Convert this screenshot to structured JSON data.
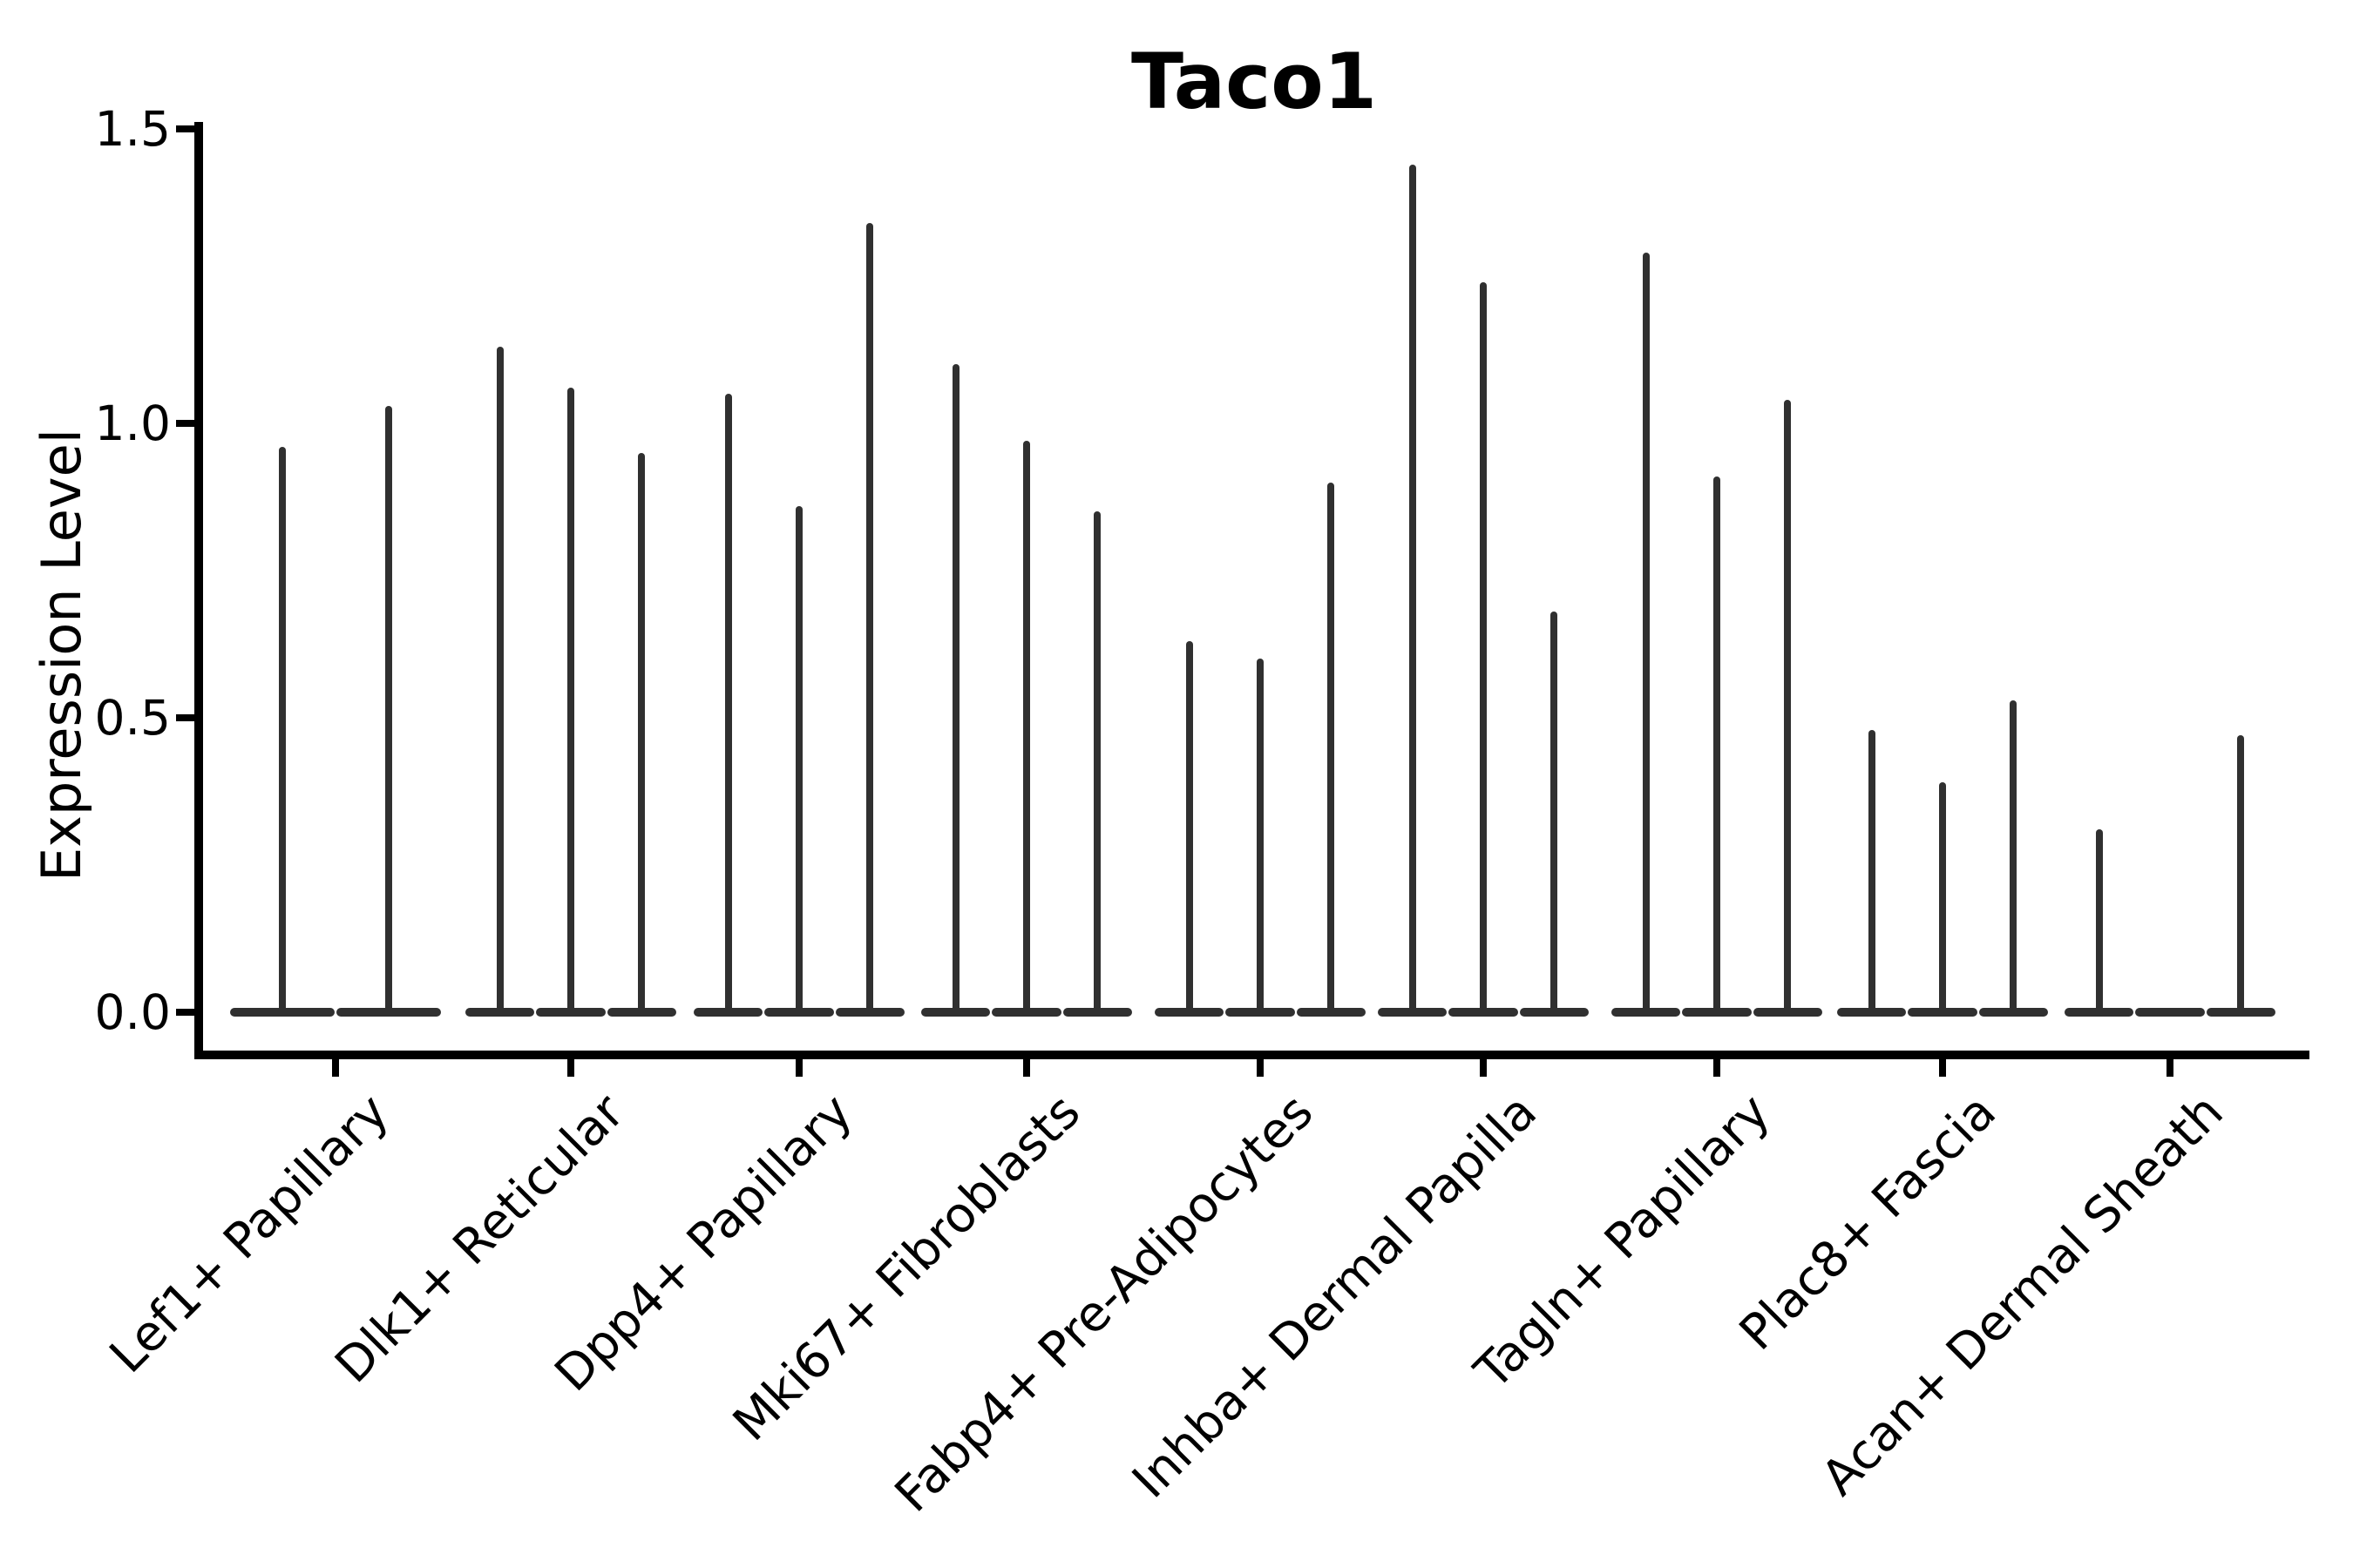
{
  "title": "Taco1",
  "colors": {
    "violin": "#303030",
    "axis": "#000000",
    "text": "#000000",
    "background": "#ffffff"
  },
  "chart_data": {
    "type": "violin",
    "title": "Taco1",
    "xlabel": "",
    "ylabel": "Expression Level",
    "ylim": [
      0,
      1.5
    ],
    "ytick_values": [
      0.0,
      0.5,
      1.0,
      1.5
    ],
    "ytick_labels": [
      "0.0",
      "0.5",
      "1.0",
      "1.5"
    ],
    "grid": false,
    "legend": false,
    "categories": [
      "Lef1+ Papillary",
      "Dlk1+ Reticular",
      "Dpp4+ Papillary",
      "Mki67+ Fibroblasts",
      "Fabp4+ Pre-Adipocytes",
      "Inhba+ Dermal Papilla",
      "Tagln+ Papillary",
      "Plac8+ Fascia",
      "Acan+ Dermal Sheath"
    ],
    "violin_peak_values_per_category": [
      [
        0.96,
        1.03
      ],
      [
        1.13,
        1.06,
        0.95
      ],
      [
        1.05,
        0.86,
        1.34
      ],
      [
        1.1,
        0.97,
        0.85
      ],
      [
        0.63,
        0.6,
        0.9
      ],
      [
        1.44,
        1.24,
        0.68
      ],
      [
        1.29,
        0.91,
        1.04
      ],
      [
        0.48,
        0.39,
        0.53
      ],
      [
        0.31,
        0.0,
        0.47
      ]
    ]
  }
}
